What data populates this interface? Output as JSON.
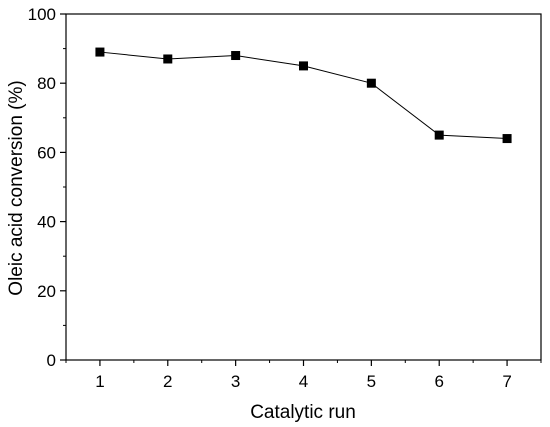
{
  "chart_data": {
    "type": "line",
    "title": "",
    "xlabel": "Catalytic run",
    "ylabel": "Oleic acid conversion (%)",
    "x": [
      1,
      2,
      3,
      4,
      5,
      6,
      7
    ],
    "x_ticks": [
      "1",
      "2",
      "3",
      "4",
      "5",
      "6",
      "7"
    ],
    "xlim": [
      0.5,
      7.5
    ],
    "ylim": [
      0,
      100
    ],
    "y_ticks": [
      "0",
      "20",
      "40",
      "60",
      "80",
      "100"
    ],
    "series": [
      {
        "values": [
          89,
          87,
          88,
          85,
          80,
          65,
          64
        ]
      }
    ],
    "grid": false,
    "legend": "none",
    "marker": "square",
    "colors": {
      "line": "#000000",
      "marker": "#000000"
    }
  }
}
